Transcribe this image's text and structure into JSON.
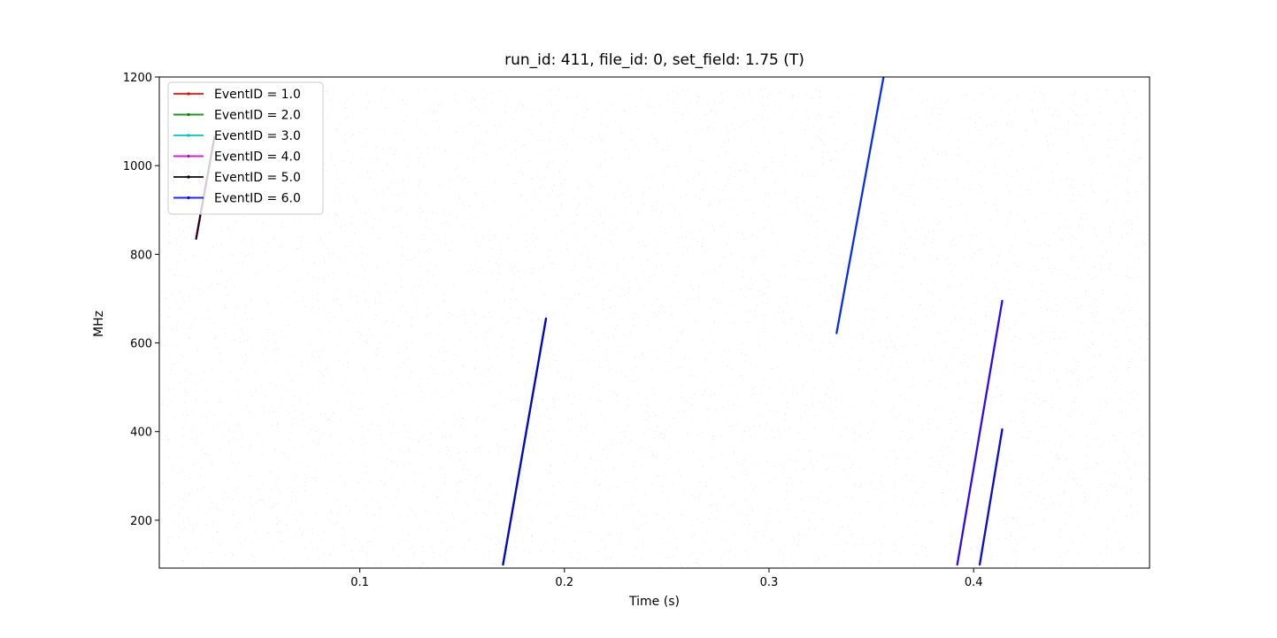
{
  "chart_data": {
    "type": "line",
    "title": "run_id: 411, file_id: 0, set_field: 1.75 (T)",
    "xlabel": "Time (s)",
    "ylabel": "MHz",
    "xlim": [
      0.002,
      0.486
    ],
    "ylim": [
      92,
      1200
    ],
    "x_ticks": [
      0.1,
      0.2,
      0.3,
      0.4
    ],
    "x_tick_labels": [
      "0.1",
      "0.2",
      "0.3",
      "0.4"
    ],
    "y_ticks": [
      200,
      400,
      600,
      800,
      1000,
      1200
    ],
    "y_tick_labels": [
      "200",
      "400",
      "600",
      "800",
      "1000",
      "1200"
    ],
    "grid": false,
    "legend_position": "top-left",
    "background_scatter": {
      "color": "#0000ff",
      "description": "sparse noise points"
    },
    "series": [
      {
        "name": "EventID = 1.0",
        "color": "#ff0000",
        "segments": [
          {
            "x": [
              0.02,
              0.029
            ],
            "y": [
              835,
              1065
            ]
          }
        ]
      },
      {
        "name": "EventID = 2.0",
        "color": "#008000",
        "segments": [
          {
            "x": [
              0.17,
              0.191
            ],
            "y": [
              100,
              655
            ]
          }
        ]
      },
      {
        "name": "EventID = 3.0",
        "color": "#00bfbf",
        "segments": [
          {
            "x": [
              0.333,
              0.356
            ],
            "y": [
              622,
              1200
            ]
          }
        ]
      },
      {
        "name": "EventID = 4.0",
        "color": "#bf00bf",
        "segments": [
          {
            "x": [
              0.02,
              0.029
            ],
            "y": [
              835,
              1065
            ]
          },
          {
            "x": [
              0.392,
              0.414
            ],
            "y": [
              100,
              695
            ]
          }
        ]
      },
      {
        "name": "EventID = 5.0",
        "color": "#000000",
        "segments": [
          {
            "x": [
              0.02,
              0.029
            ],
            "y": [
              835,
              1065
            ]
          },
          {
            "x": [
              0.17,
              0.191
            ],
            "y": [
              100,
              655
            ]
          },
          {
            "x": [
              0.403,
              0.414
            ],
            "y": [
              100,
              405
            ]
          }
        ]
      },
      {
        "name": "EventID = 6.0",
        "color": "#0000ff",
        "segments": [
          {
            "x": [
              0.17,
              0.191
            ],
            "y": [
              100,
              655
            ]
          },
          {
            "x": [
              0.333,
              0.356
            ],
            "y": [
              622,
              1200
            ]
          },
          {
            "x": [
              0.392,
              0.414
            ],
            "y": [
              100,
              695
            ]
          },
          {
            "x": [
              0.403,
              0.414
            ],
            "y": [
              100,
              405
            ]
          }
        ]
      }
    ]
  }
}
